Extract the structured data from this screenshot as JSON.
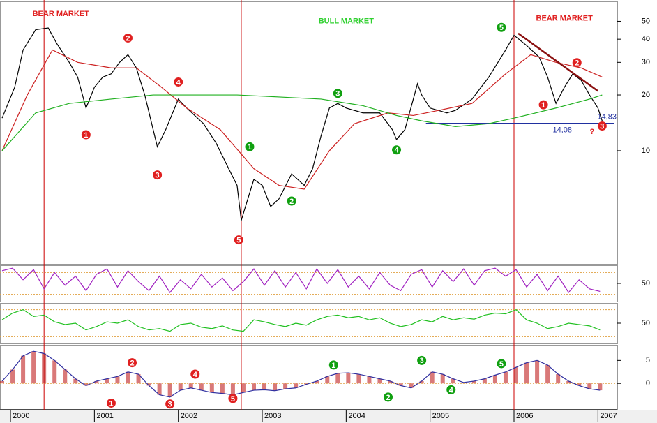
{
  "chart_data": [
    {
      "type": "line",
      "log": true,
      "xlim": [
        1999.875,
        2007.23
      ],
      "ylim": [
        2.45,
        64
      ],
      "yticks": [
        10,
        20,
        30,
        40,
        50
      ],
      "vlines": [
        2000.4,
        2002.75,
        2006.0
      ],
      "series": [
        {
          "name": "Price",
          "color": "#000000",
          "x": [
            1999.9,
            2000.05,
            2000.15,
            2000.3,
            2000.45,
            2000.55,
            2000.7,
            2000.8,
            2000.9,
            2001.0,
            2001.1,
            2001.2,
            2001.3,
            2001.4,
            2001.5,
            2001.6,
            2001.7,
            2001.75,
            2001.85,
            2002.0,
            2002.1,
            2002.3,
            2002.45,
            2002.6,
            2002.7,
            2002.75,
            2002.8,
            2002.9,
            2003.0,
            2003.1,
            2003.2,
            2003.35,
            2003.5,
            2003.6,
            2003.7,
            2003.8,
            2003.9,
            2004.0,
            2004.2,
            2004.4,
            2004.55,
            2004.6,
            2004.7,
            2004.8,
            2004.85,
            2004.9,
            2005.0,
            2005.2,
            2005.3,
            2005.5,
            2005.7,
            2005.9,
            2006.0,
            2006.15,
            2006.3,
            2006.4,
            2006.5,
            2006.6,
            2006.7,
            2006.8,
            2006.9,
            2007.0,
            2007.05
          ],
          "values": [
            15,
            22,
            35,
            45,
            46,
            38,
            30,
            25,
            17,
            22,
            25,
            26,
            30,
            33,
            28,
            20,
            13,
            10.5,
            13,
            19,
            17,
            14,
            11,
            8,
            6.5,
            4.2,
            5,
            7,
            6.5,
            5,
            5.5,
            7.5,
            6.5,
            8,
            12,
            17,
            18,
            17,
            16,
            16,
            13,
            11.5,
            13,
            19,
            23,
            20,
            17,
            16,
            16.5,
            19,
            25,
            35,
            42,
            37,
            32,
            25,
            18,
            22,
            26,
            24,
            20,
            17,
            14.5
          ]
        },
        {
          "name": "MA short",
          "color": "#cc2020",
          "x": [
            1999.9,
            2000.2,
            2000.5,
            2000.8,
            2001.2,
            2001.5,
            2001.8,
            2002.1,
            2002.5,
            2002.9,
            2003.2,
            2003.5,
            2003.8,
            2004.1,
            2004.5,
            2004.8,
            2005.1,
            2005.5,
            2005.9,
            2006.2,
            2006.5,
            2006.8,
            2007.05
          ],
          "values": [
            10,
            20,
            35,
            30,
            28,
            28,
            22,
            17,
            13,
            8,
            6.5,
            6.2,
            10,
            14,
            16,
            15.5,
            16.5,
            18,
            26,
            33,
            30,
            28,
            25
          ]
        },
        {
          "name": "MA long",
          "color": "#20b020",
          "x": [
            1999.9,
            2000.3,
            2000.7,
            2001.2,
            2001.7,
            2002.2,
            2002.7,
            2003.2,
            2003.7,
            2004.2,
            2004.6,
            2004.9,
            2005.3,
            2005.7,
            2006.0,
            2006.5,
            2006.9,
            2007.05
          ],
          "values": [
            10,
            16,
            18,
            19,
            20,
            20,
            20,
            19.5,
            19,
            17.5,
            15.5,
            14.5,
            13.5,
            14,
            15,
            17,
            19,
            20
          ]
        }
      ],
      "trendline": {
        "color": "#8b1010",
        "x": [
          2006.05,
          2007.0
        ],
        "values": [
          43,
          21
        ]
      },
      "hlines": [
        {
          "value": 14.08,
          "label": "14,08",
          "x0": 2004.95
        },
        {
          "value": 14.83,
          "label": "14,83",
          "x0": 2004.9
        }
      ],
      "annotations": [
        {
          "x": 2000.6,
          "y": 54.6,
          "text": "BEAR MARKET",
          "color": "#e02020"
        },
        {
          "x": 2004.0,
          "y": 50,
          "text": "BULL MARKET",
          "color": "#30d030"
        },
        {
          "x": 2006.6,
          "y": 51.8,
          "text": "BEAR MARKET",
          "color": "#e02020"
        },
        {
          "x": 2006.93,
          "y": 12.6,
          "text": "?",
          "color": "#e02020"
        }
      ],
      "wave_labels": [
        {
          "x": 2000.9,
          "y": 12.2,
          "text": "1",
          "color": "#e02020"
        },
        {
          "x": 2001.4,
          "y": 40.6,
          "text": "2",
          "color": "#e02020"
        },
        {
          "x": 2001.75,
          "y": 7.4,
          "text": "3",
          "color": "#e02020"
        },
        {
          "x": 2002.0,
          "y": 23.5,
          "text": "4",
          "color": "#e02020"
        },
        {
          "x": 2002.72,
          "y": 3.3,
          "text": "5",
          "color": "#e02020"
        },
        {
          "x": 2002.85,
          "y": 10.5,
          "text": "1",
          "color": "#10a010"
        },
        {
          "x": 2003.35,
          "y": 5.35,
          "text": "2",
          "color": "#10a010"
        },
        {
          "x": 2003.9,
          "y": 20.4,
          "text": "3",
          "color": "#10a010"
        },
        {
          "x": 2004.6,
          "y": 10.1,
          "text": "4",
          "color": "#10a010"
        },
        {
          "x": 2005.85,
          "y": 46.3,
          "text": "5",
          "color": "#10a010"
        },
        {
          "x": 2006.35,
          "y": 17.7,
          "text": "1",
          "color": "#e02020"
        },
        {
          "x": 2006.75,
          "y": 29.9,
          "text": "2",
          "color": "#e02020"
        },
        {
          "x": 2007.05,
          "y": 13.6,
          "text": "3",
          "color": "#e02020"
        }
      ]
    },
    {
      "type": "line",
      "xlim": [
        1999.875,
        2007.23
      ],
      "ylim": [
        0,
        100
      ],
      "yticks": [
        50
      ],
      "refs": [
        80,
        20
      ],
      "series": [
        {
          "name": "Stochastic",
          "color": "#a020c0",
          "x": [
            1999.9,
            2000.025,
            2000.15,
            2000.275,
            2000.4,
            2000.525,
            2000.65,
            2000.775,
            2000.9,
            2001.025,
            2001.15,
            2001.275,
            2001.4,
            2001.525,
            2001.65,
            2001.775,
            2001.9,
            2002.025,
            2002.15,
            2002.275,
            2002.4,
            2002.525,
            2002.65,
            2002.775,
            2002.9,
            2003.025,
            2003.15,
            2003.275,
            2003.4,
            2003.525,
            2003.65,
            2003.775,
            2003.9,
            2004.025,
            2004.15,
            2004.275,
            2004.4,
            2004.525,
            2004.65,
            2004.775,
            2004.9,
            2005.025,
            2005.15,
            2005.275,
            2005.4,
            2005.525,
            2005.65,
            2005.775,
            2005.9,
            2006.025,
            2006.15,
            2006.275,
            2006.4,
            2006.525,
            2006.65,
            2006.775,
            2006.9,
            2007.025
          ],
          "values": [
            85,
            92,
            60,
            88,
            35,
            80,
            45,
            70,
            30,
            75,
            90,
            40,
            85,
            55,
            30,
            70,
            25,
            60,
            35,
            75,
            40,
            65,
            30,
            55,
            90,
            45,
            85,
            40,
            80,
            35,
            90,
            50,
            88,
            40,
            70,
            35,
            80,
            45,
            30,
            75,
            88,
            40,
            85,
            55,
            90,
            45,
            85,
            92,
            70,
            88,
            40,
            75,
            30,
            70,
            25,
            60,
            35,
            28
          ]
        }
      ]
    },
    {
      "type": "line",
      "xlim": [
        1999.875,
        2007.23
      ],
      "ylim": [
        20,
        80
      ],
      "yticks": [
        50
      ],
      "refs": [
        70,
        30
      ],
      "series": [
        {
          "name": "RSI",
          "color": "#20c020",
          "x": [
            1999.9,
            2000.025,
            2000.15,
            2000.275,
            2000.4,
            2000.525,
            2000.65,
            2000.775,
            2000.9,
            2001.025,
            2001.15,
            2001.275,
            2001.4,
            2001.525,
            2001.65,
            2001.775,
            2001.9,
            2002.025,
            2002.15,
            2002.275,
            2002.4,
            2002.525,
            2002.65,
            2002.775,
            2002.9,
            2003.025,
            2003.15,
            2003.275,
            2003.4,
            2003.525,
            2003.65,
            2003.775,
            2003.9,
            2004.025,
            2004.15,
            2004.275,
            2004.4,
            2004.525,
            2004.65,
            2004.775,
            2004.9,
            2005.025,
            2005.15,
            2005.275,
            2005.4,
            2005.525,
            2005.65,
            2005.775,
            2005.9,
            2006.025,
            2006.15,
            2006.275,
            2006.4,
            2006.525,
            2006.65,
            2006.775,
            2006.9,
            2007.025
          ],
          "values": [
            55,
            65,
            70,
            60,
            62,
            52,
            48,
            50,
            40,
            45,
            52,
            50,
            55,
            45,
            40,
            42,
            38,
            48,
            50,
            44,
            42,
            46,
            40,
            38,
            55,
            52,
            48,
            45,
            50,
            47,
            55,
            60,
            62,
            58,
            60,
            55,
            58,
            50,
            45,
            48,
            55,
            52,
            60,
            55,
            58,
            56,
            62,
            65,
            64,
            70,
            55,
            50,
            42,
            45,
            50,
            48,
            46,
            40
          ]
        }
      ]
    },
    {
      "type": "bar",
      "xlim": [
        1999.875,
        2007.23
      ],
      "ylim": [
        -5.6,
        8.4
      ],
      "yticks": [
        0,
        5
      ],
      "xticks": [
        2000,
        2001,
        2002,
        2003,
        2004,
        2005,
        2006,
        2007
      ],
      "series": [
        {
          "name": "MACD",
          "color": "#c02020",
          "line_color": "#3030a0",
          "x": [
            1999.9,
            2000.025,
            2000.15,
            2000.275,
            2000.4,
            2000.525,
            2000.65,
            2000.775,
            2000.9,
            2001.025,
            2001.15,
            2001.275,
            2001.4,
            2001.525,
            2001.65,
            2001.775,
            2001.9,
            2002.025,
            2002.15,
            2002.275,
            2002.4,
            2002.525,
            2002.65,
            2002.775,
            2002.9,
            2003.025,
            2003.15,
            2003.275,
            2003.4,
            2003.525,
            2003.65,
            2003.775,
            2003.9,
            2004.025,
            2004.15,
            2004.275,
            2004.4,
            2004.525,
            2004.65,
            2004.775,
            2004.9,
            2005.025,
            2005.15,
            2005.275,
            2005.4,
            2005.525,
            2005.65,
            2005.775,
            2005.9,
            2006.025,
            2006.15,
            2006.275,
            2006.4,
            2006.525,
            2006.65,
            2006.775,
            2006.9,
            2007.025
          ],
          "values": [
            0.5,
            3,
            6,
            7,
            6.5,
            5,
            3,
            1,
            -0.5,
            0.5,
            1,
            1.5,
            2.5,
            2,
            -0.5,
            -2.5,
            -3,
            -1.5,
            -1,
            -1.5,
            -2,
            -2.2,
            -2.5,
            -2,
            -1.5,
            -1.4,
            -1.6,
            -1.2,
            -1,
            -0.2,
            0.5,
            1.5,
            2.2,
            2.3,
            2,
            1.5,
            1,
            0.5,
            -0.5,
            -1,
            0.5,
            2.5,
            2,
            1,
            0.2,
            0.5,
            1,
            1.8,
            2.5,
            3.5,
            4.5,
            5,
            4,
            2,
            0.5,
            -0.5,
            -1.2,
            -1.5
          ]
        }
      ],
      "wave_labels": [
        {
          "x": 2001.2,
          "y": -4.3,
          "text": "1",
          "color": "#e02020"
        },
        {
          "x": 2001.45,
          "y": 4.5,
          "text": "2",
          "color": "#e02020"
        },
        {
          "x": 2001.9,
          "y": -4.5,
          "text": "3",
          "color": "#e02020"
        },
        {
          "x": 2002.2,
          "y": 2,
          "text": "4",
          "color": "#e02020"
        },
        {
          "x": 2002.65,
          "y": -3.3,
          "text": "5",
          "color": "#e02020"
        },
        {
          "x": 2003.85,
          "y": 4,
          "text": "1",
          "color": "#10a010"
        },
        {
          "x": 2004.5,
          "y": -3,
          "text": "2",
          "color": "#10a010"
        },
        {
          "x": 2004.9,
          "y": 5,
          "text": "3",
          "color": "#10a010"
        },
        {
          "x": 2005.25,
          "y": -1.4,
          "text": "4",
          "color": "#10a010"
        },
        {
          "x": 2005.85,
          "y": 4.3,
          "text": "5",
          "color": "#10a010"
        }
      ]
    }
  ]
}
